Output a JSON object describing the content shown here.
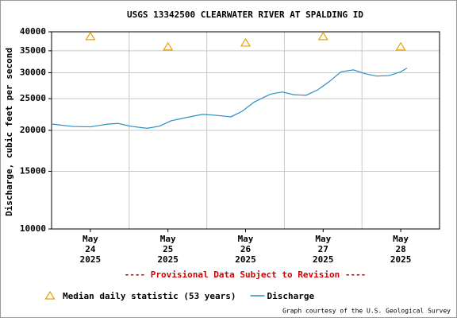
{
  "chart_data": {
    "type": "line",
    "title": "USGS 13342500 CLEARWATER RIVER AT SPALDING ID",
    "y_label": "Discharge, cubic feet per second",
    "annotation": "---- Provisional Data Subject to Revision ----",
    "credit": "Graph courtesy of the U.S. Geological Survey",
    "log_y": true,
    "grid": true,
    "xlim": [
      24,
      29
    ],
    "xgrid": [
      25,
      26,
      27,
      28
    ],
    "xticks": [
      {
        "value": 24.5,
        "label": [
          "May",
          "24",
          "2025"
        ]
      },
      {
        "value": 25.5,
        "label": [
          "May",
          "25",
          "2025"
        ]
      },
      {
        "value": 26.5,
        "label": [
          "May",
          "26",
          "2025"
        ]
      },
      {
        "value": 27.5,
        "label": [
          "May",
          "27",
          "2025"
        ]
      },
      {
        "value": 28.5,
        "label": [
          "May",
          "28",
          "2025"
        ]
      }
    ],
    "ylim": [
      10000,
      40000
    ],
    "yticks": [
      10000,
      15000,
      20000,
      25000,
      30000,
      35000,
      40000
    ],
    "series": [
      {
        "name": "Median daily statistic (53 years)",
        "type": "scatter",
        "marker": "triangle",
        "color": "#e8a000",
        "x": [
          24.5,
          25.5,
          26.5,
          27.5,
          28.5
        ],
        "values": [
          38700,
          36000,
          37000,
          38700,
          36000
        ]
      },
      {
        "name": "Discharge",
        "type": "line",
        "color": "#2a8fc4",
        "x": [
          24.01,
          24.27,
          24.5,
          24.72,
          24.86,
          25.01,
          25.23,
          25.39,
          25.54,
          25.74,
          25.95,
          26.15,
          26.31,
          26.46,
          26.61,
          26.82,
          26.97,
          27.12,
          27.28,
          27.43,
          27.58,
          27.73,
          27.89,
          28.04,
          28.19,
          28.35,
          28.5,
          28.58
        ],
        "values": [
          20900,
          20560,
          20500,
          20900,
          21000,
          20600,
          20300,
          20600,
          21400,
          21900,
          22400,
          22200,
          22000,
          22900,
          24400,
          25800,
          26200,
          25700,
          25600,
          26600,
          28200,
          30200,
          30600,
          29800,
          29300,
          29400,
          30200,
          31000
        ]
      }
    ]
  }
}
